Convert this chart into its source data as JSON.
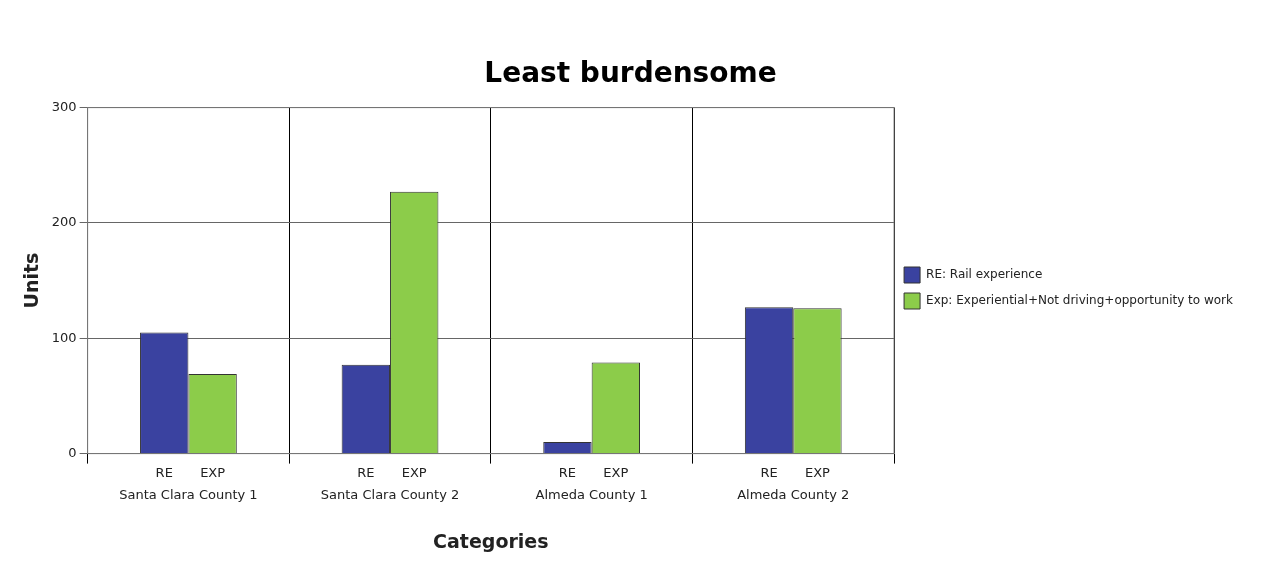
{
  "chart_data": {
    "type": "bar",
    "title": "Least burdensome",
    "xlabel": "Categories",
    "ylabel": "Units",
    "categories": [
      "Santa Clara County 1",
      "Santa Clara County 2",
      "Almeda County 1",
      "Almeda County 2"
    ],
    "series": [
      {
        "name": "RE: Rail experience",
        "color": "#3a42a0",
        "values": [
          105,
          77,
          10,
          127
        ]
      },
      {
        "name": "Exp: Experiential+Not driving+opportunity to work",
        "color": "#8ccc4a",
        "values": [
          69,
          227,
          79,
          126
        ]
      }
    ],
    "annotations": [
      "RE",
      "EXP",
      "RE",
      "EXP",
      "RE",
      "EXP",
      "RE",
      "EXP"
    ],
    "ylim": [
      0,
      300
    ],
    "yticks": [
      0,
      100,
      200,
      300
    ],
    "grid": true,
    "legend": "right"
  }
}
